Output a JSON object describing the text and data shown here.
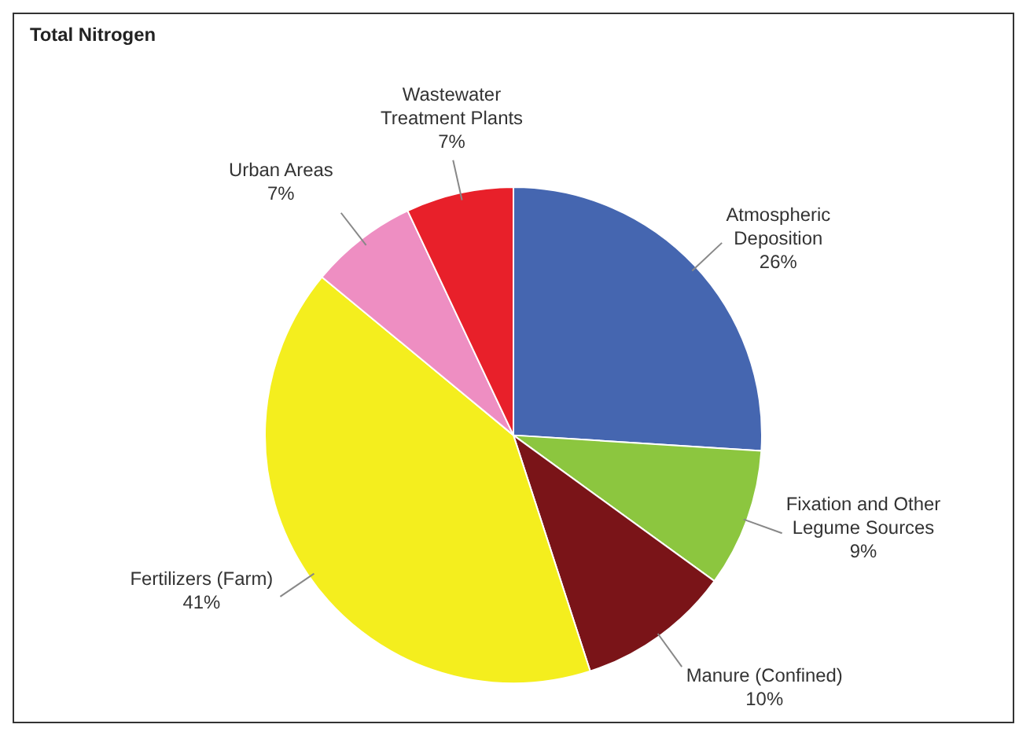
{
  "chart_data": {
    "type": "pie",
    "title": "Total Nitrogen",
    "categories": [
      "Atmospheric Deposition",
      "Fixation and Other Legume Sources",
      "Manure (Confined)",
      "Fertilizers (Farm)",
      "Urban Areas",
      "Wastewater Treatment Plants"
    ],
    "values": [
      26,
      9,
      10,
      41,
      7,
      7
    ],
    "value_labels": [
      "26%",
      "9%",
      "10%",
      "41%",
      "7%",
      "7%"
    ],
    "colors": [
      "#4566b0",
      "#8cc63f",
      "#7a1418",
      "#f4ee1e",
      "#ee8ec2",
      "#e8202a"
    ],
    "legend": false
  }
}
